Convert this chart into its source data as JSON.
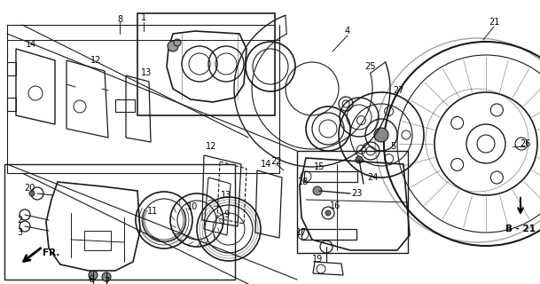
{
  "background_color": "#ffffff",
  "line_color": "#1a1a1a",
  "fig_width": 6.09,
  "fig_height": 3.2,
  "dpi": 100,
  "border_color": "#333333",
  "text_color": "#000000"
}
